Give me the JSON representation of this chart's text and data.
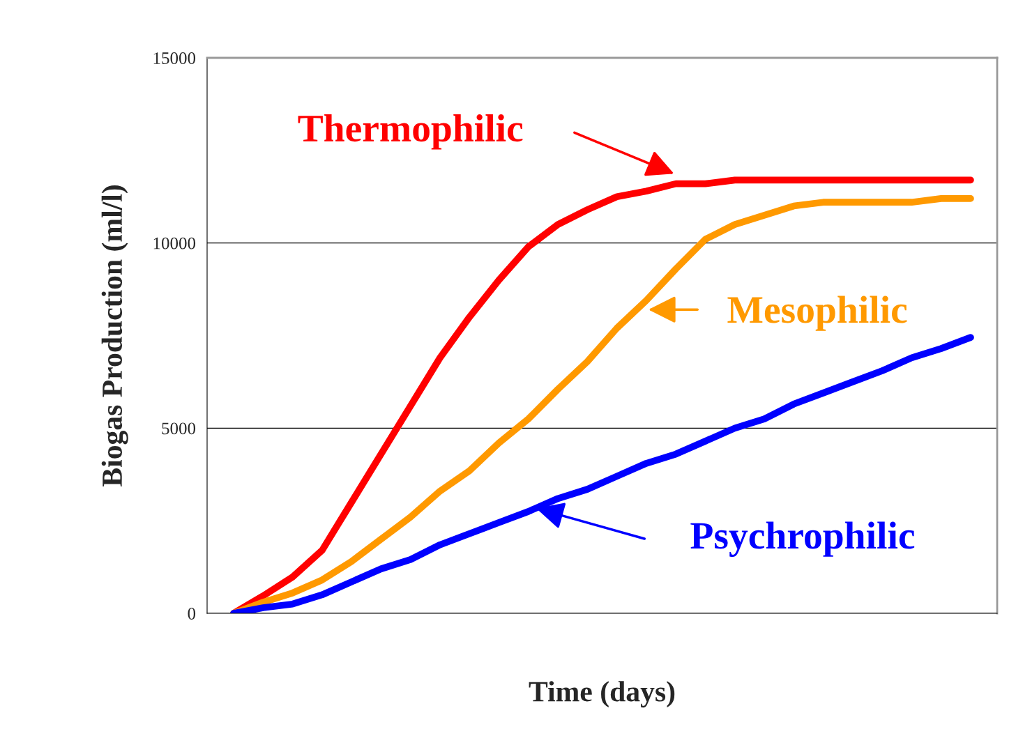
{
  "chart_data": {
    "type": "line",
    "xlabel": "Time (days)",
    "ylabel": "Biogas Production (ml/l)",
    "categories": [
      null,
      null,
      null,
      null,
      null,
      null,
      null,
      null,
      null,
      null,
      null,
      null,
      null,
      null,
      null,
      null,
      null,
      null,
      null,
      null,
      null,
      null,
      null,
      null,
      null,
      null
    ],
    "series": [
      {
        "name": "Thermophilic",
        "color": "#ff0000",
        "values": [
          0,
          470,
          980,
          1700,
          3000,
          4300,
          5600,
          6900,
          8000,
          9000,
          9900,
          10500,
          10900,
          11250,
          11400,
          11600,
          11600,
          11700,
          11700,
          11700,
          11700,
          11700,
          11700,
          11700,
          11700,
          11700
        ]
      },
      {
        "name": "Mesophilic",
        "color": "#ff9900",
        "values": [
          0,
          300,
          550,
          900,
          1400,
          2000,
          2600,
          3300,
          3850,
          4600,
          5250,
          6050,
          6800,
          7700,
          8450,
          9300,
          10100,
          10500,
          10750,
          11000,
          11100,
          11100,
          11100,
          11100,
          11200,
          11200
        ]
      },
      {
        "name": "Psychrophilic",
        "color": "#0000ff",
        "values": [
          0,
          150,
          250,
          500,
          850,
          1200,
          1450,
          1850,
          2150,
          2450,
          2750,
          3100,
          3350,
          3700,
          4050,
          4300,
          4650,
          5000,
          5250,
          5650,
          5950,
          6250,
          6550,
          6900,
          7150,
          7450
        ]
      }
    ],
    "ylim": [
      0,
      15000
    ],
    "yticks": [
      0,
      5000,
      10000,
      15000
    ],
    "grid": "y",
    "legend": "right",
    "tick_labels": "y",
    "line_style": "solid",
    "marker": "none"
  }
}
